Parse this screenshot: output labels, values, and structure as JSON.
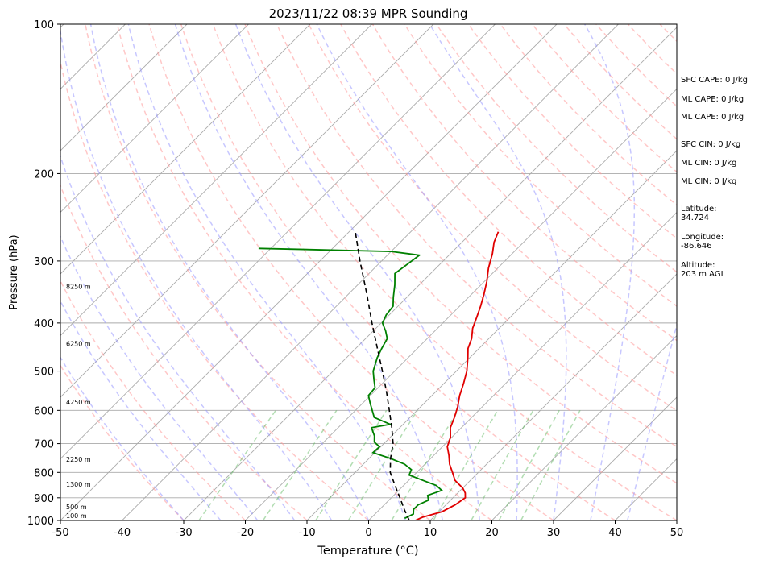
{
  "chart_data": {
    "type": "skew-t",
    "title": "2023/11/22 08:39 MPR Sounding",
    "xlabel": "Temperature (°C)",
    "ylabel": "Pressure (hPa)",
    "xlim": [
      -50,
      50
    ],
    "ylim": [
      1000,
      100
    ],
    "x_ticks": [
      -50,
      -40,
      -30,
      -20,
      -10,
      0,
      10,
      20,
      30,
      40,
      50
    ],
    "y_ticks": [
      100,
      200,
      300,
      400,
      500,
      600,
      700,
      800,
      900,
      1000
    ],
    "y_scale": "log",
    "grid": true,
    "temperature": {
      "color": "#e00000",
      "points": [
        [
          1000,
          7.6
        ],
        [
          985,
          8.2
        ],
        [
          960,
          10.5
        ],
        [
          930,
          11.5
        ],
        [
          900,
          12.0
        ],
        [
          880,
          11.2
        ],
        [
          860,
          10.0
        ],
        [
          830,
          7.5
        ],
        [
          800,
          5.8
        ],
        [
          770,
          4.0
        ],
        [
          740,
          2.5
        ],
        [
          710,
          0.8
        ],
        [
          680,
          -0.2
        ],
        [
          650,
          -1.8
        ],
        [
          620,
          -2.8
        ],
        [
          590,
          -4.0
        ],
        [
          560,
          -5.5
        ],
        [
          530,
          -6.8
        ],
        [
          500,
          -8.3
        ],
        [
          470,
          -10.3
        ],
        [
          450,
          -11.8
        ],
        [
          430,
          -12.8
        ],
        [
          410,
          -14.3
        ],
        [
          390,
          -15.4
        ],
        [
          370,
          -16.6
        ],
        [
          350,
          -18.0
        ],
        [
          330,
          -19.6
        ],
        [
          310,
          -21.5
        ],
        [
          290,
          -23.2
        ],
        [
          275,
          -24.8
        ],
        [
          262,
          -25.8
        ]
      ]
    },
    "dewpoint": {
      "color": "#008000",
      "points": [
        [
          990,
          5.5
        ],
        [
          970,
          6.2
        ],
        [
          950,
          5.5
        ],
        [
          930,
          5.5
        ],
        [
          910,
          6.4
        ],
        [
          890,
          5.5
        ],
        [
          870,
          7.0
        ],
        [
          850,
          5.3
        ],
        [
          830,
          2.3
        ],
        [
          810,
          -0.8
        ],
        [
          790,
          -1.3
        ],
        [
          770,
          -3.3
        ],
        [
          750,
          -6.5
        ],
        [
          730,
          -10.3
        ],
        [
          710,
          -10.2
        ],
        [
          695,
          -11.8
        ],
        [
          675,
          -12.8
        ],
        [
          650,
          -14.6
        ],
        [
          640,
          -12.1
        ],
        [
          620,
          -15.8
        ],
        [
          580,
          -18.8
        ],
        [
          560,
          -20.3
        ],
        [
          540,
          -20.5
        ],
        [
          520,
          -22.0
        ],
        [
          500,
          -23.5
        ],
        [
          470,
          -25.0
        ],
        [
          450,
          -25.8
        ],
        [
          430,
          -26.5
        ],
        [
          415,
          -28.0
        ],
        [
          400,
          -29.8
        ],
        [
          385,
          -30.5
        ],
        [
          370,
          -30.8
        ],
        [
          355,
          -32.2
        ],
        [
          335,
          -34.0
        ],
        [
          318,
          -35.8
        ],
        [
          305,
          -35.3
        ],
        [
          292,
          -34.8
        ],
        [
          287,
          -40.0
        ],
        [
          283,
          -62.0
        ]
      ]
    },
    "parcel": {
      "color": "#000000",
      "points": [
        [
          1000,
          6.6
        ],
        [
          950,
          4.0
        ],
        [
          900,
          1.4
        ],
        [
          850,
          -1.4
        ],
        [
          800,
          -4.3
        ],
        [
          750,
          -6.5
        ],
        [
          700,
          -8.5
        ],
        [
          650,
          -11.3
        ],
        [
          600,
          -14.5
        ],
        [
          550,
          -18.0
        ],
        [
          500,
          -22.0
        ],
        [
          450,
          -26.5
        ],
        [
          400,
          -31.5
        ],
        [
          350,
          -37.0
        ],
        [
          300,
          -43.5
        ],
        [
          262,
          -49.0
        ]
      ]
    },
    "height_labels": [
      {
        "p": 1000,
        "text": "100 m"
      },
      {
        "p": 960,
        "text": "500 m"
      },
      {
        "p": 865,
        "text": "1300 m"
      },
      {
        "p": 770,
        "text": "2250 m"
      },
      {
        "p": 590,
        "text": "4250 m"
      },
      {
        "p": 450,
        "text": "6250 m"
      },
      {
        "p": 345,
        "text": "8250 m"
      }
    ]
  },
  "side_panel": {
    "cape": [
      "SFC CAPE: 0 J/kg",
      "ML CAPE: 0 J/kg",
      "ML CAPE: 0 J/kg"
    ],
    "cin": [
      "SFC CIN: 0 J/kg",
      "ML CIN: 0 J/kg",
      "ML CIN: 0 J/kg"
    ],
    "latitude_label": "Latitude:",
    "latitude_value": "34.724",
    "longitude_label": "Longitude:",
    "longitude_value": "-86.646",
    "altitude_label": "Altitude:",
    "altitude_value": "203 m AGL"
  },
  "colors": {
    "dry_adiabat": "#ff9999",
    "moist_adiabat": "#9999ff",
    "mixing_ratio": "#66bb66",
    "isotherm": "#aaaaaa",
    "isobar": "#aaaaaa"
  }
}
